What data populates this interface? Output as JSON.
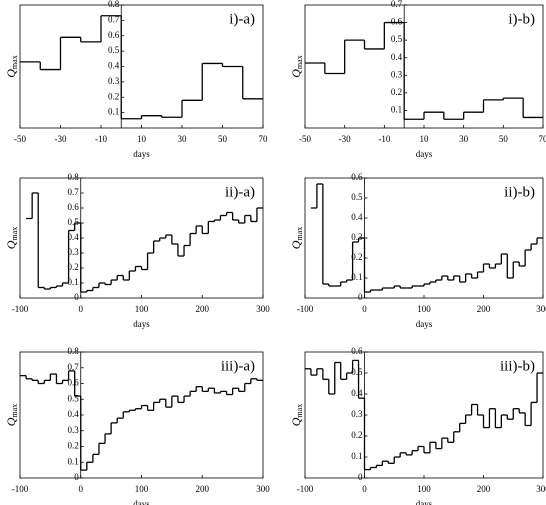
{
  "chart_data": [
    {
      "type": "step",
      "title": "i)-a)",
      "xlabel": "days",
      "ylabel": "Q",
      "ylabel_sub": "max",
      "x": [
        -50,
        -40,
        -30,
        -20,
        -10,
        0,
        10,
        20,
        30,
        40,
        50,
        60
      ],
      "values": [
        0.43,
        0.38,
        0.59,
        0.56,
        0.73,
        0.06,
        0.08,
        0.07,
        0.18,
        0.42,
        0.4,
        0.19
      ],
      "xlim": [
        -50,
        70
      ],
      "ylim": [
        0,
        0.8
      ],
      "xticks": [
        -50,
        -30,
        -10,
        10,
        30,
        50,
        70
      ],
      "yticks": [
        0.1,
        0.2,
        0.3,
        0.4,
        0.5,
        0.6,
        0.7,
        0.8
      ],
      "color": "#000000"
    },
    {
      "type": "step",
      "title": "i)-b)",
      "xlabel": "days",
      "ylabel": "Q",
      "ylabel_sub": "max",
      "x": [
        -50,
        -40,
        -30,
        -20,
        -10,
        0,
        10,
        20,
        30,
        40,
        50,
        60
      ],
      "values": [
        0.37,
        0.31,
        0.5,
        0.45,
        0.6,
        0.05,
        0.09,
        0.05,
        0.09,
        0.16,
        0.17,
        0.06
      ],
      "xlim": [
        -50,
        70
      ],
      "ylim": [
        0,
        0.7
      ],
      "xticks": [
        -50,
        -30,
        -10,
        10,
        30,
        50,
        70
      ],
      "yticks": [
        0.1,
        0.2,
        0.3,
        0.4,
        0.5,
        0.6,
        0.7
      ],
      "color": "#000000"
    },
    {
      "type": "step",
      "title": "ii)-a)",
      "xlabel": "days",
      "ylabel": "Q",
      "ylabel_sub": "max",
      "x": [
        -90,
        -80,
        -70,
        -60,
        -50,
        -40,
        -30,
        -20,
        -10,
        0,
        10,
        20,
        30,
        40,
        50,
        60,
        70,
        80,
        90,
        100,
        110,
        120,
        130,
        140,
        150,
        160,
        170,
        180,
        190,
        200,
        210,
        220,
        230,
        240,
        250,
        260,
        270,
        280,
        290
      ],
      "values": [
        0.53,
        0.7,
        0.07,
        0.06,
        0.07,
        0.08,
        0.1,
        0.45,
        0.5,
        0.04,
        0.05,
        0.07,
        0.1,
        0.09,
        0.12,
        0.15,
        0.12,
        0.18,
        0.21,
        0.19,
        0.3,
        0.38,
        0.4,
        0.42,
        0.36,
        0.28,
        0.35,
        0.43,
        0.48,
        0.43,
        0.51,
        0.52,
        0.55,
        0.57,
        0.52,
        0.5,
        0.55,
        0.51,
        0.6
      ],
      "xlim": [
        -100,
        300
      ],
      "ylim": [
        0,
        0.8
      ],
      "xticks": [
        -100,
        0,
        100,
        200,
        300
      ],
      "yticks": [
        0,
        0.1,
        0.2,
        0.3,
        0.4,
        0.5,
        0.6,
        0.7,
        0.8
      ],
      "color": "#000000"
    },
    {
      "type": "step",
      "title": "ii)-b)",
      "xlabel": "days",
      "ylabel": "Q",
      "ylabel_sub": "max",
      "x": [
        -90,
        -80,
        -70,
        -60,
        -50,
        -40,
        -30,
        -20,
        -10,
        0,
        10,
        20,
        30,
        40,
        50,
        60,
        70,
        80,
        90,
        100,
        110,
        120,
        130,
        140,
        150,
        160,
        170,
        180,
        190,
        200,
        210,
        220,
        230,
        240,
        250,
        260,
        270,
        280,
        290
      ],
      "values": [
        0.45,
        0.57,
        0.07,
        0.06,
        0.06,
        0.08,
        0.09,
        0.28,
        0.3,
        0.03,
        0.04,
        0.04,
        0.05,
        0.05,
        0.06,
        0.05,
        0.05,
        0.06,
        0.06,
        0.07,
        0.08,
        0.09,
        0.11,
        0.09,
        0.11,
        0.08,
        0.12,
        0.1,
        0.13,
        0.17,
        0.15,
        0.17,
        0.22,
        0.1,
        0.18,
        0.16,
        0.24,
        0.27,
        0.3
      ],
      "xlim": [
        -100,
        300
      ],
      "ylim": [
        0,
        0.6
      ],
      "xticks": [
        -100,
        0,
        100,
        200,
        300
      ],
      "yticks": [
        0,
        0.1,
        0.2,
        0.3,
        0.4,
        0.5,
        0.6
      ],
      "color": "#000000"
    },
    {
      "type": "step",
      "title": "iii)-a)",
      "xlabel": "days",
      "ylabel": "Q",
      "ylabel_sub": "max",
      "x": [
        -100,
        -90,
        -80,
        -70,
        -60,
        -50,
        -40,
        -30,
        -20,
        -10,
        0,
        10,
        20,
        30,
        40,
        50,
        60,
        70,
        80,
        90,
        100,
        110,
        120,
        130,
        140,
        150,
        160,
        170,
        180,
        190,
        200,
        210,
        220,
        230,
        240,
        250,
        260,
        270,
        280,
        290
      ],
      "values": [
        0.65,
        0.63,
        0.62,
        0.6,
        0.62,
        0.66,
        0.6,
        0.62,
        0.68,
        0.52,
        0.05,
        0.1,
        0.15,
        0.22,
        0.28,
        0.35,
        0.38,
        0.42,
        0.43,
        0.44,
        0.46,
        0.43,
        0.48,
        0.5,
        0.45,
        0.52,
        0.48,
        0.52,
        0.55,
        0.58,
        0.55,
        0.57,
        0.54,
        0.55,
        0.53,
        0.57,
        0.55,
        0.6,
        0.63,
        0.62
      ],
      "xlim": [
        -100,
        300
      ],
      "ylim": [
        0,
        0.8
      ],
      "xticks": [
        -100,
        0,
        100,
        200,
        300
      ],
      "yticks": [
        0,
        0.1,
        0.2,
        0.3,
        0.4,
        0.5,
        0.6,
        0.7,
        0.8
      ],
      "color": "#000000"
    },
    {
      "type": "step",
      "title": "iii)-b)",
      "xlabel": "days",
      "ylabel": "Q",
      "ylabel_sub": "max",
      "x": [
        -100,
        -90,
        -80,
        -70,
        -60,
        -50,
        -40,
        -30,
        -20,
        -10,
        0,
        10,
        20,
        30,
        40,
        50,
        60,
        70,
        80,
        90,
        100,
        110,
        120,
        130,
        140,
        150,
        160,
        170,
        180,
        190,
        200,
        210,
        220,
        230,
        240,
        250,
        260,
        270,
        280,
        290
      ],
      "values": [
        0.52,
        0.49,
        0.52,
        0.47,
        0.4,
        0.55,
        0.47,
        0.5,
        0.56,
        0.38,
        0.04,
        0.05,
        0.06,
        0.08,
        0.07,
        0.1,
        0.12,
        0.11,
        0.13,
        0.15,
        0.12,
        0.17,
        0.14,
        0.19,
        0.17,
        0.22,
        0.26,
        0.3,
        0.35,
        0.3,
        0.24,
        0.33,
        0.24,
        0.3,
        0.28,
        0.33,
        0.31,
        0.25,
        0.36,
        0.5
      ],
      "xlim": [
        -100,
        300
      ],
      "ylim": [
        0,
        0.6
      ],
      "xticks": [
        -100,
        0,
        100,
        200,
        300
      ],
      "yticks": [
        0,
        0.1,
        0.2,
        0.3,
        0.4,
        0.5,
        0.6
      ],
      "color": "#000000"
    }
  ]
}
